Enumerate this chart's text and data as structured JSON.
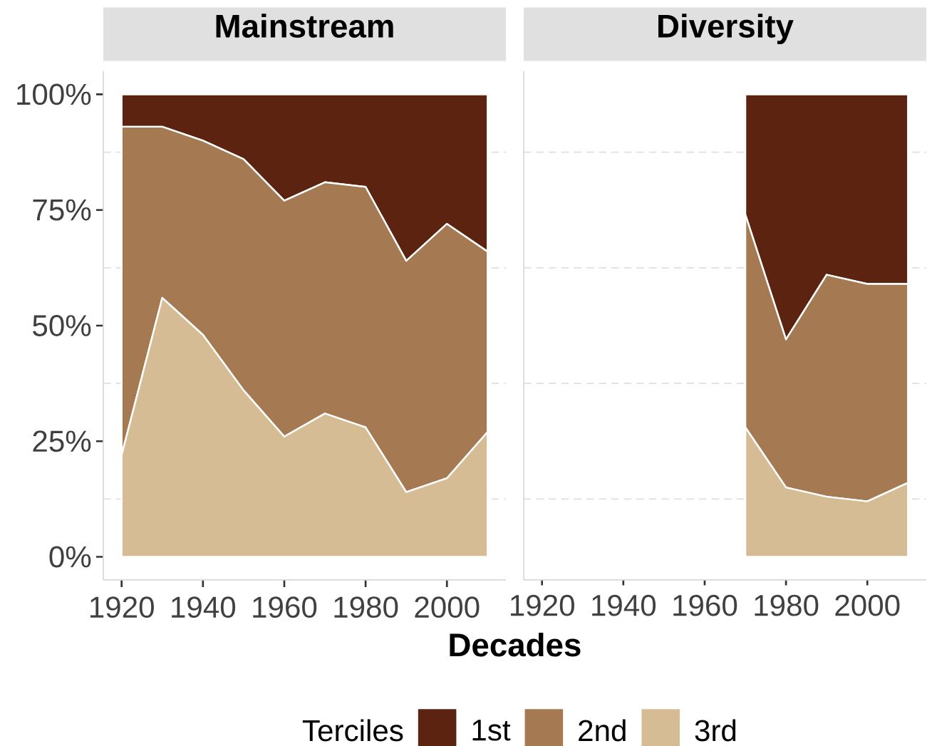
{
  "chart_data": [
    {
      "type": "area",
      "title": "Mainstream",
      "xlabel": "Decades",
      "legend_title": "Terciles",
      "legend": "bottom",
      "stacked": true,
      "grid": "y",
      "x": [
        1920,
        1930,
        1940,
        1950,
        1960,
        1970,
        1980,
        1990,
        2000,
        2010
      ],
      "xlim": [
        1915.5,
        2014.5
      ],
      "ylim": [
        -5,
        105
      ],
      "xticks": [
        1920,
        1940,
        1960,
        1980,
        2000
      ],
      "yticks": [
        {
          "value": 0,
          "label": "0%"
        },
        {
          "value": 25,
          "label": "25%"
        },
        {
          "value": 50,
          "label": "50%"
        },
        {
          "value": 75,
          "label": "75%"
        },
        {
          "value": 100,
          "label": "100%"
        }
      ],
      "series": [
        {
          "name": "3rd",
          "color": "#d6bc94",
          "values": [
            22,
            56,
            48,
            36,
            26,
            31,
            28,
            14,
            17,
            27
          ]
        },
        {
          "name": "2nd",
          "color": "#a57a52",
          "values": [
            71,
            37,
            42,
            50,
            51,
            50,
            52,
            50,
            55,
            39
          ]
        },
        {
          "name": "1st",
          "color": "#5c2410",
          "values": [
            7,
            7,
            10,
            14,
            23,
            19,
            20,
            36,
            28,
            34
          ]
        }
      ]
    },
    {
      "type": "area",
      "title": "Diversity",
      "stacked": true,
      "grid": "y",
      "tick_labels": "x",
      "x": [
        1970,
        1980,
        1990,
        2000,
        2010
      ],
      "xlim": [
        1915.5,
        2014.5
      ],
      "ylim": [
        -5,
        105
      ],
      "xticks": [
        1920,
        1940,
        1960,
        1980,
        2000
      ],
      "yticks": [
        0,
        25,
        50,
        75,
        100
      ],
      "series": [
        {
          "color": "#d6bc94",
          "values": [
            28,
            15,
            13,
            12,
            16
          ]
        },
        {
          "color": "#a57a52",
          "values": [
            46,
            32,
            48,
            47,
            43
          ]
        },
        {
          "color": "#5c2410",
          "values": [
            26,
            53,
            39,
            41,
            41
          ]
        }
      ]
    }
  ]
}
